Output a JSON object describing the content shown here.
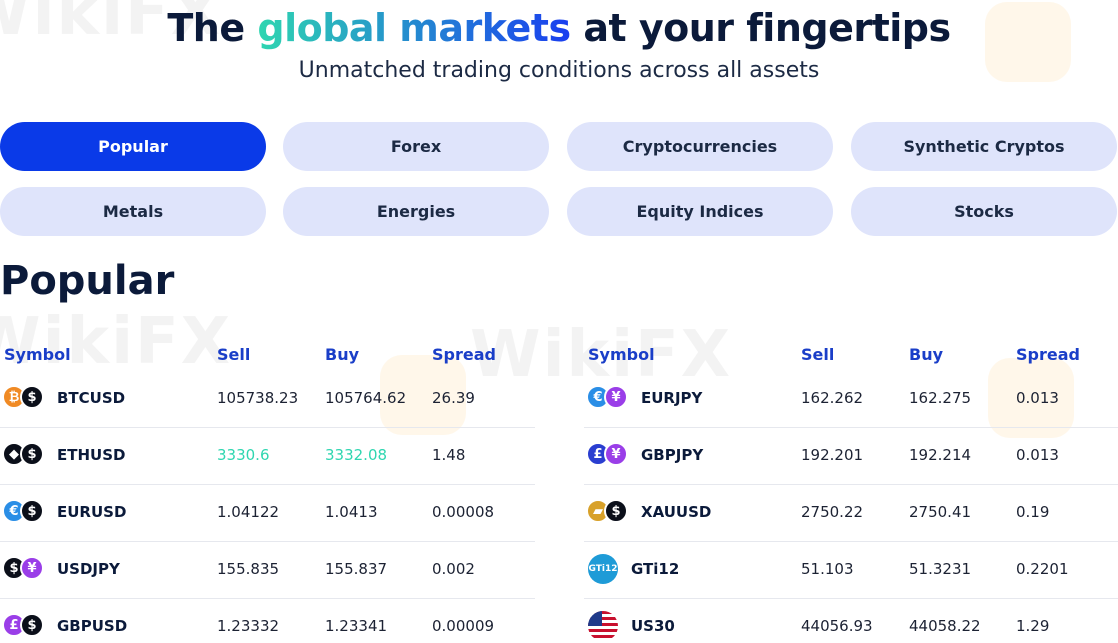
{
  "hero": {
    "title_before": "The ",
    "title_accent": "global markets",
    "title_after": " at your fingertips",
    "subtitle": "Unmatched trading conditions across all assets"
  },
  "watermark_text": "WikiFX",
  "tabs": [
    {
      "label": "Popular",
      "active": true
    },
    {
      "label": "Forex",
      "active": false
    },
    {
      "label": "Cryptocurrencies",
      "active": false
    },
    {
      "label": "Synthetic Cryptos",
      "active": false
    },
    {
      "label": "Metals",
      "active": false
    },
    {
      "label": "Energies",
      "active": false
    },
    {
      "label": "Equity Indices",
      "active": false
    },
    {
      "label": "Stocks",
      "active": false
    }
  ],
  "section_title": "Popular",
  "columns": {
    "symbol": "Symbol",
    "sell": "Sell",
    "buy": "Buy",
    "spread": "Spread"
  },
  "colors": {
    "accent_blue": "#0a3ae8",
    "header_blue": "#1a3ec8",
    "price_up": "#2fd6b0",
    "tab_bg": "#dfe4fb"
  },
  "left_table": [
    {
      "symbol": "BTCUSD",
      "sell": "105738.23",
      "buy": "105764.62",
      "spread": "26.39",
      "highlight": false,
      "icons": [
        {
          "name": "bitcoin-icon",
          "glyph": "₿",
          "color": "#f08a24"
        },
        {
          "name": "dollar-icon",
          "glyph": "$",
          "color": "#0b0f1a"
        }
      ]
    },
    {
      "symbol": "ETHUSD",
      "sell": "3330.6",
      "buy": "3332.08",
      "spread": "1.48",
      "highlight": true,
      "icons": [
        {
          "name": "ethereum-icon",
          "glyph": "◆",
          "color": "#0b0f1a"
        },
        {
          "name": "dollar-icon",
          "glyph": "$",
          "color": "#0b0f1a"
        }
      ]
    },
    {
      "symbol": "EURUSD",
      "sell": "1.04122",
      "buy": "1.0413",
      "spread": "0.00008",
      "highlight": false,
      "icons": [
        {
          "name": "euro-icon",
          "glyph": "€",
          "color": "#2a8ee6"
        },
        {
          "name": "dollar-icon",
          "glyph": "$",
          "color": "#0b0f1a"
        }
      ]
    },
    {
      "symbol": "USDJPY",
      "sell": "155.835",
      "buy": "155.837",
      "spread": "0.002",
      "highlight": false,
      "icons": [
        {
          "name": "dollar-icon",
          "glyph": "$",
          "color": "#0b0f1a"
        },
        {
          "name": "yen-icon",
          "glyph": "¥",
          "color": "#9a3ee8"
        }
      ]
    },
    {
      "symbol": "GBPUSD",
      "sell": "1.23332",
      "buy": "1.23341",
      "spread": "0.00009",
      "highlight": false,
      "icons": [
        {
          "name": "pound-icon",
          "glyph": "£",
          "color": "#9a3ee8"
        },
        {
          "name": "dollar-icon",
          "glyph": "$",
          "color": "#0b0f1a"
        }
      ]
    }
  ],
  "right_table": [
    {
      "symbol": "EURJPY",
      "sell": "162.262",
      "buy": "162.275",
      "spread": "0.013",
      "highlight": false,
      "icons": [
        {
          "name": "euro-icon",
          "glyph": "€",
          "color": "#2a8ee6"
        },
        {
          "name": "yen-icon",
          "glyph": "¥",
          "color": "#9a3ee8"
        }
      ]
    },
    {
      "symbol": "GBPJPY",
      "sell": "192.201",
      "buy": "192.214",
      "spread": "0.013",
      "highlight": false,
      "icons": [
        {
          "name": "pound-icon",
          "glyph": "£",
          "color": "#2a3ed0"
        },
        {
          "name": "yen-icon",
          "glyph": "¥",
          "color": "#9a3ee8"
        }
      ]
    },
    {
      "symbol": "XAUUSD",
      "sell": "2750.22",
      "buy": "2750.41",
      "spread": "0.19",
      "highlight": false,
      "icons": [
        {
          "name": "gold-bars-icon",
          "glyph": "▰",
          "color": "#d8a12a"
        },
        {
          "name": "dollar-icon",
          "glyph": "$",
          "color": "#0b0f1a"
        }
      ]
    },
    {
      "symbol": "GTi12",
      "sell": "51.103",
      "buy": "51.3231",
      "spread": "0.2201",
      "highlight": false,
      "icons": [
        {
          "name": "gti12-index-icon",
          "glyph": "GTi12",
          "color": "#1e9bd7",
          "single": true
        }
      ]
    },
    {
      "symbol": "US30",
      "sell": "44056.93",
      "buy": "44058.22",
      "spread": "1.29",
      "highlight": false,
      "icons": [
        {
          "name": "us-flag-icon",
          "flag": true
        }
      ]
    }
  ]
}
